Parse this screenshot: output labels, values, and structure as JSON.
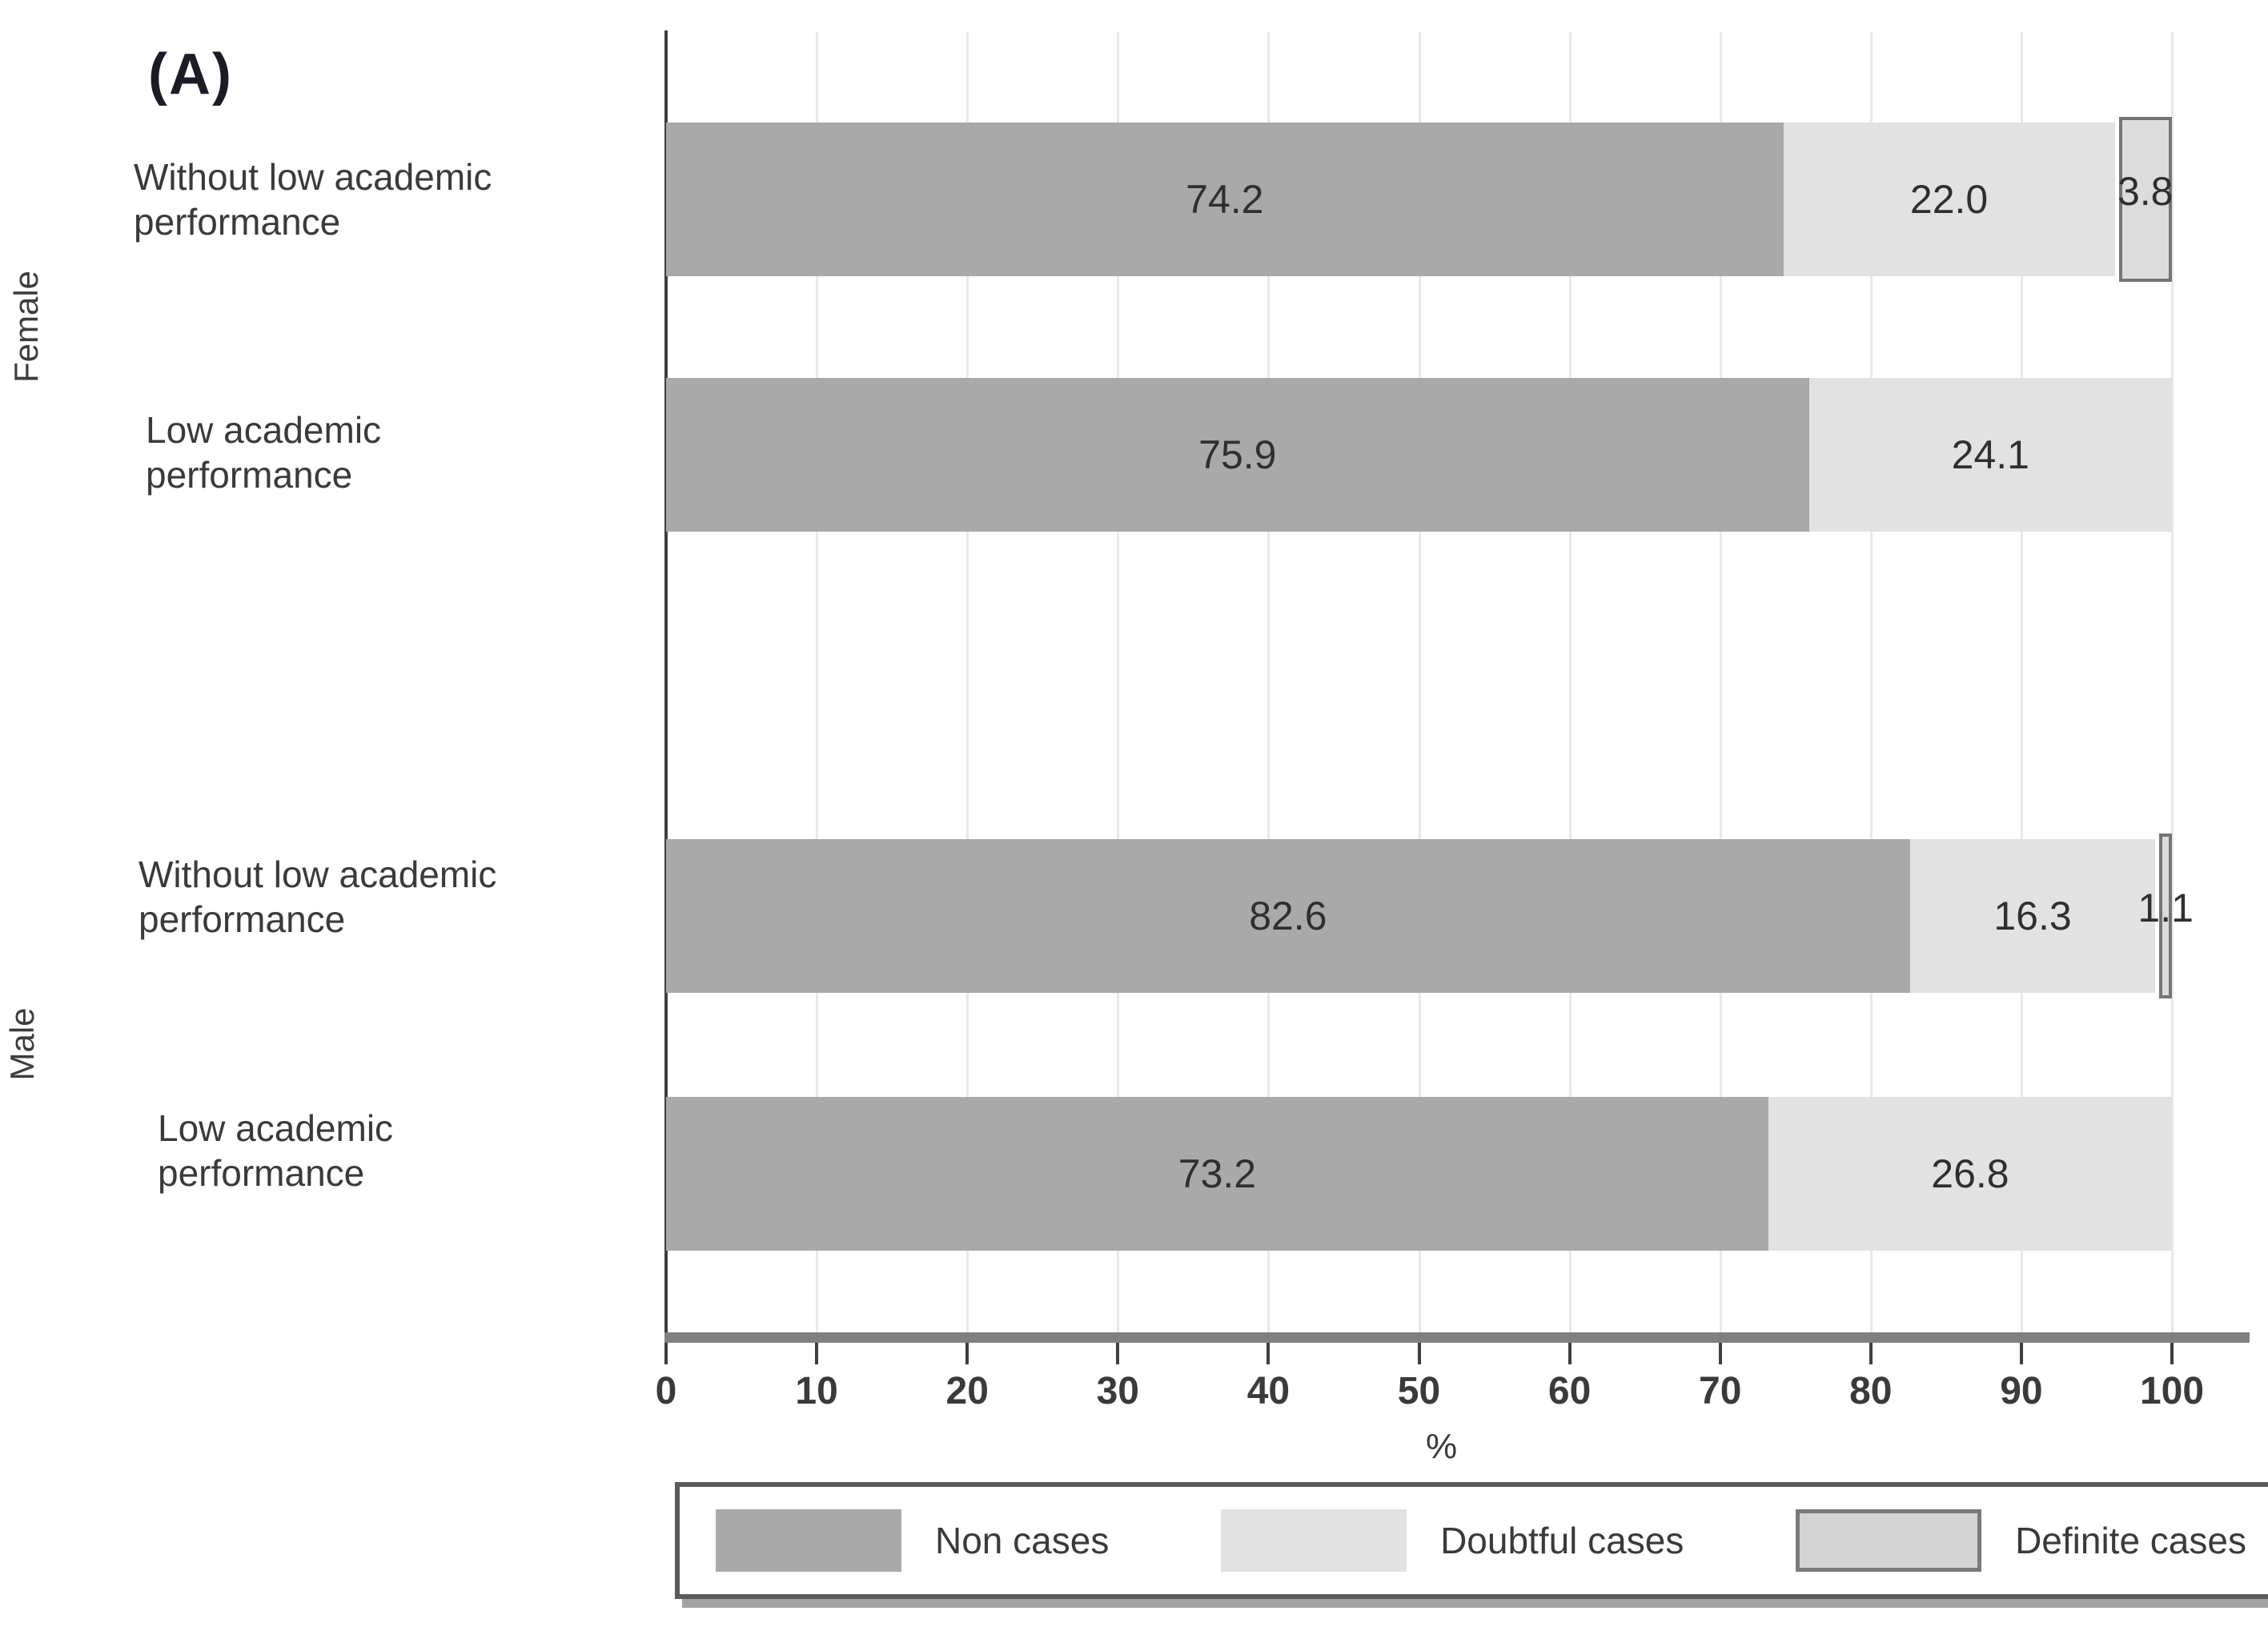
{
  "panel_label": "(A)",
  "axis": {
    "ticks": [
      0,
      10,
      20,
      30,
      40,
      50,
      60,
      70,
      80,
      90,
      100
    ],
    "xlabel": "%",
    "xlim": [
      0,
      100
    ]
  },
  "group_labels": [
    "Female",
    "Male"
  ],
  "rows": [
    {
      "group": "Female",
      "category": "Without low academic\nperformance",
      "non_cases": 74.2,
      "non_cases_label": "74.2",
      "doubtful_cases": 22.0,
      "doubtful_cases_label": "22.0",
      "definite_cases": 3.8,
      "definite_cases_label": "3.8"
    },
    {
      "group": "Female",
      "category": "Low academic\nperformance",
      "non_cases": 75.9,
      "non_cases_label": "75.9",
      "doubtful_cases": 24.1,
      "doubtful_cases_label": "24.1",
      "definite_cases": 0,
      "definite_cases_label": ""
    },
    {
      "group": "Male",
      "category": "Without low academic\nperformance",
      "non_cases": 82.6,
      "non_cases_label": "82.6",
      "doubtful_cases": 16.3,
      "doubtful_cases_label": "16.3",
      "definite_cases": 1.1,
      "definite_cases_label": "1.1"
    },
    {
      "group": "Male",
      "category": "Low academic\nperformance",
      "non_cases": 73.2,
      "non_cases_label": "73.2",
      "doubtful_cases": 26.8,
      "doubtful_cases_label": "26.8",
      "definite_cases": 0,
      "definite_cases_label": ""
    }
  ],
  "legend": {
    "items": [
      {
        "label": "Non cases",
        "key": "non"
      },
      {
        "label": "Doubtful cases",
        "key": "doubtful"
      },
      {
        "label": "Definite cases",
        "key": "definite"
      }
    ]
  },
  "colors": {
    "non": "#a9a9a9",
    "doubtful": "#e2e2e2",
    "definite_fill": "#dcdcdc",
    "definite_border": "#757575",
    "axis_line": "#3f3f3f",
    "x_axis_bar": "#808080",
    "gridline": "#e9e9e9",
    "text": "#3a3a3a"
  },
  "chart_data": {
    "type": "bar",
    "orientation": "horizontal",
    "stacked": true,
    "title": "(A)",
    "xlabel": "%",
    "xlim": [
      0,
      100
    ],
    "grid": true,
    "legend_position": "bottom",
    "categories": [
      "Female - Without low academic performance",
      "Female - Low academic performance",
      "Male - Without low academic performance",
      "Male - Low academic performance"
    ],
    "series": [
      {
        "name": "Non cases",
        "values": [
          74.2,
          75.9,
          82.6,
          73.2
        ],
        "color": "#a9a9a9"
      },
      {
        "name": "Doubtful cases",
        "values": [
          22.0,
          24.1,
          16.3,
          26.8
        ],
        "color": "#e2e2e2"
      },
      {
        "name": "Definite cases",
        "values": [
          3.8,
          0,
          1.1,
          0
        ],
        "color": "#dcdcdc"
      }
    ]
  }
}
